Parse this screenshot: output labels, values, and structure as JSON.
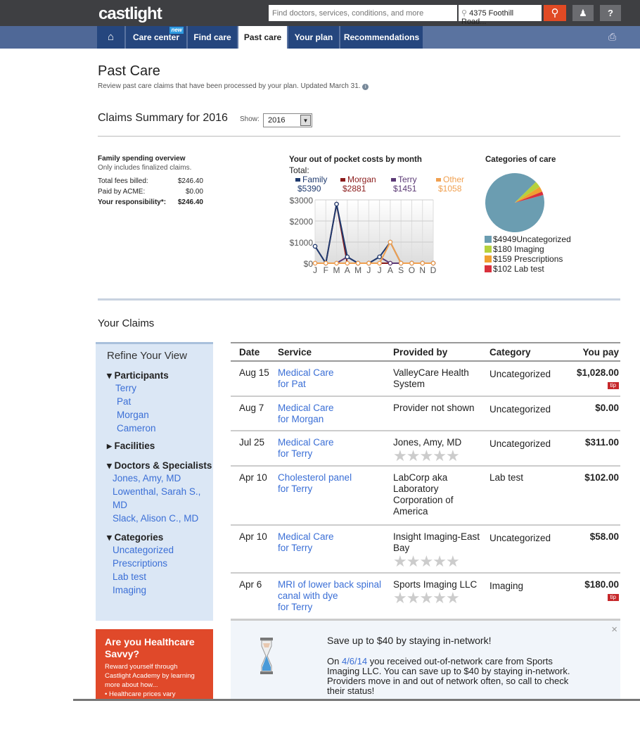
{
  "header": {
    "logo": "castlight",
    "search_placeholder": "Find doctors, services, conditions, and more",
    "location": "4375 Foothill Road...",
    "search_icon": "magnifier",
    "user_icon": "person",
    "help_icon": "?"
  },
  "nav": {
    "tabs": [
      {
        "label": "Care center",
        "badge": "new"
      },
      {
        "label": "Find care"
      },
      {
        "label": "Past care",
        "active": true
      },
      {
        "label": "Your plan"
      },
      {
        "label": "Recommendations"
      }
    ],
    "home_icon": "home",
    "print_icon": "printer"
  },
  "page": {
    "title": "Past Care",
    "subtitle": "Review past care claims that have been processed by your plan. Updated March 31."
  },
  "summary": {
    "title": "Claims Summary for 2016",
    "show_label": "Show:",
    "year": "2016",
    "family": {
      "title": "Family spending overview",
      "note": "Only includes finalized claims.",
      "rows": [
        {
          "label": "Total fees billed:",
          "value": "$246.40"
        },
        {
          "label": "Paid by ACME:",
          "value": "$0.00"
        },
        {
          "label": "Your responsibility*:",
          "value": "$246.40"
        }
      ]
    }
  },
  "chart_data": [
    {
      "type": "line",
      "title": "Your out of pocket costs by month",
      "total_label": "Total:",
      "categories": [
        "J",
        "F",
        "M",
        "A",
        "M",
        "J",
        "J",
        "A",
        "S",
        "O",
        "N",
        "D"
      ],
      "ylim": [
        0,
        3000
      ],
      "yticks": [
        "$0",
        "$1000",
        "$2000",
        "$3000"
      ],
      "grid": true,
      "series": [
        {
          "name": "Family",
          "total": "$5390",
          "color": "#1f3a6e",
          "values": [
            800,
            0,
            2800,
            300,
            0,
            0,
            300,
            1000,
            0,
            0,
            0,
            0
          ]
        },
        {
          "name": "Morgan",
          "total": "$2881",
          "color": "#8b1c1c",
          "values": [
            0,
            0,
            2800,
            0,
            0,
            0,
            0,
            0,
            0,
            0,
            0,
            0
          ]
        },
        {
          "name": "Terry",
          "total": "$1451",
          "color": "#5b3a75",
          "values": [
            800,
            0,
            0,
            300,
            0,
            0,
            300,
            0,
            0,
            0,
            0,
            0
          ]
        },
        {
          "name": "Other",
          "total": "$1058",
          "color": "#f0a050",
          "values": [
            0,
            0,
            0,
            0,
            0,
            0,
            0,
            1000,
            0,
            0,
            0,
            0
          ]
        }
      ]
    },
    {
      "type": "pie",
      "title": "Categories of care",
      "slices": [
        {
          "label": "$4949Uncategorized",
          "value": 4949,
          "color": "#6b9db1"
        },
        {
          "label": "$180 Imaging",
          "value": 180,
          "color": "#b6d13c"
        },
        {
          "label": "$159 Prescriptions",
          "value": 159,
          "color": "#f0a030"
        },
        {
          "label": "$102 Lab test",
          "value": 102,
          "color": "#d9303c"
        }
      ]
    }
  ],
  "claims": {
    "title": "Your Claims",
    "refine": {
      "title": "Refine Your View",
      "participants_label": "Participants",
      "participants": [
        "Terry",
        "Pat",
        "Morgan",
        "Cameron"
      ],
      "facilities_label": "Facilities",
      "doctors_label": "Doctors & Specialists",
      "doctors": [
        "Jones, Amy, MD",
        "Lowenthal, Sarah S., MD",
        "Slack, Alison C., MD"
      ],
      "categories_label": "Categories",
      "categories": [
        "Uncategorized",
        "Prescriptions",
        "Lab test",
        "Imaging"
      ]
    },
    "columns": [
      "Date",
      "Service",
      "Provided by",
      "Category",
      "You pay"
    ],
    "rows": [
      {
        "date": "Aug 15",
        "service": "Medical Care",
        "for": "for Pat",
        "provider": "ValleyCare Health System",
        "category": "Uncategorized",
        "pay": "$1,028.00",
        "tip": "tip"
      },
      {
        "date": "Aug 7",
        "service": "Medical Care",
        "for": "for Morgan",
        "provider": "Provider not shown",
        "category": "Uncategorized",
        "pay": "$0.00"
      },
      {
        "date": "Jul 25",
        "service": "Medical Care",
        "for": "for Terry",
        "provider": "Jones, Amy, MD",
        "category": "Uncategorized",
        "pay": "$311.00",
        "stars": true
      },
      {
        "date": "Apr 10",
        "service": "Cholesterol panel",
        "for": "for Terry",
        "provider": "LabCorp aka Laboratory Corporation of America",
        "category": "Lab test",
        "pay": "$102.00"
      },
      {
        "date": "Apr 10",
        "service": "Medical Care",
        "for": "for Terry",
        "provider": "Insight Imaging-East Bay",
        "category": "Uncategorized",
        "pay": "$58.00",
        "stars": true
      },
      {
        "date": "Apr 6",
        "service": "MRI of lower back spinal canal with dye",
        "for": "for Terry",
        "provider": "Sports Imaging LLC",
        "category": "Imaging",
        "pay": "$180.00",
        "tip": "tip",
        "stars": true
      }
    ]
  },
  "promo": {
    "title": "Are you Healthcare Savvy?",
    "text": "Reward yourself through Castlight Academy by learning more about how...",
    "bullet": "• Healthcare prices vary"
  },
  "tipbox": {
    "title": "Save up to $40 by staying in-network!",
    "pre": "On ",
    "date": "4/6/14",
    "text": " you received out-of-network care from Sports Imaging LLC. You can save up to $40 by staying in-network. Providers move in and out of network often, so call to check their status!",
    "close": "×"
  }
}
